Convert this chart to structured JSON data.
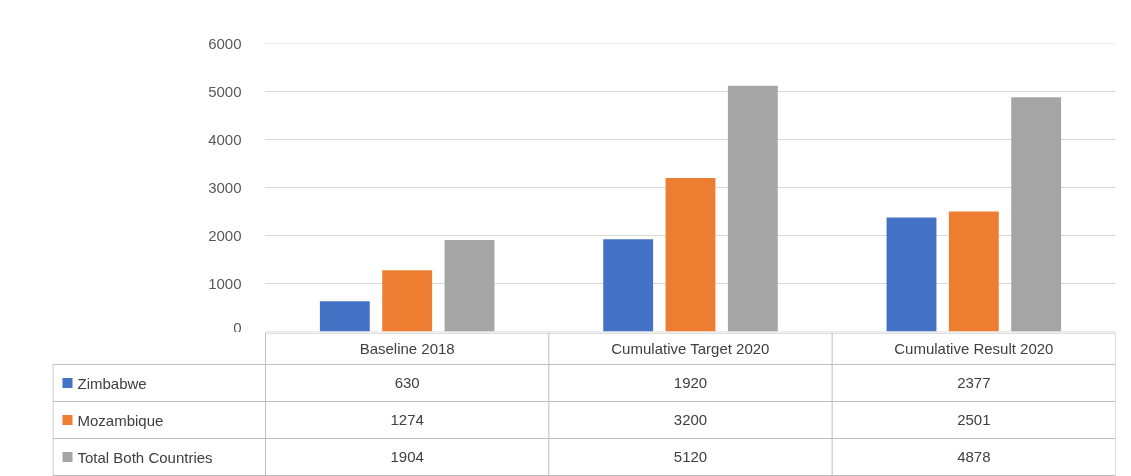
{
  "chart_data": {
    "type": "bar",
    "categories": [
      "Baseline 2018",
      "Cumulative Target 2020",
      "Cumulative Result 2020"
    ],
    "series": [
      {
        "name": "Zimbabwe",
        "color": "#4472c4",
        "values": [
          630,
          1920,
          2377
        ]
      },
      {
        "name": "Mozambique",
        "color": "#ed7d31",
        "values": [
          1274,
          3200,
          2501
        ]
      },
      {
        "name": "Total Both Countries",
        "color": "#a5a5a5",
        "values": [
          1904,
          5120,
          4878
        ]
      }
    ],
    "ylim": [
      0,
      6000
    ],
    "yticks": [
      0,
      1000,
      2000,
      3000,
      4000,
      5000,
      6000
    ],
    "grid": "y",
    "legend": "bottom",
    "data_labels": true
  }
}
